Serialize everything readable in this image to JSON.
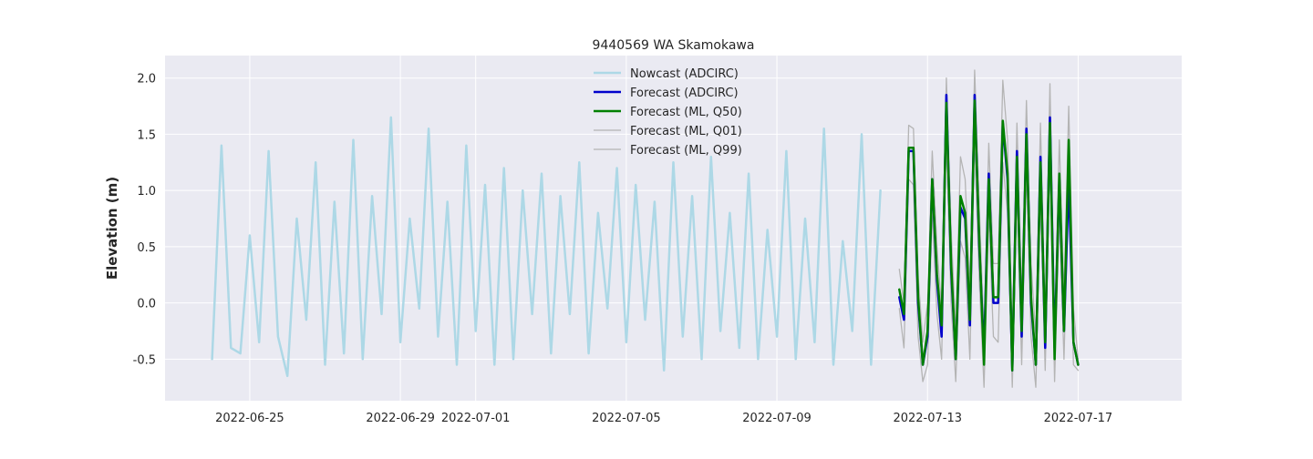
{
  "chart_data": {
    "type": "line",
    "title": "9440569 WA Skamokawa",
    "xlabel": "",
    "ylabel": "Elevation (m)",
    "x_type": "date",
    "xlim": [
      "2022-06-22T18:00",
      "2022-07-19T18:00"
    ],
    "ylim": [
      -0.87,
      2.2
    ],
    "x_ticks": [
      "2022-06-25",
      "2022-06-29",
      "2022-07-01",
      "2022-07-05",
      "2022-07-09",
      "2022-07-13",
      "2022-07-17"
    ],
    "y_ticks": [
      -0.5,
      0.0,
      0.5,
      1.0,
      1.5,
      2.0
    ],
    "grid": true,
    "legend_position": "top-center",
    "series": [
      {
        "name": "Nowcast (ADCIRC)",
        "color": "#add8e6",
        "x_start": "2022-06-24T00:00",
        "step_hours": 6,
        "y": [
          -0.5,
          1.4,
          -0.4,
          -0.45,
          0.6,
          -0.35,
          1.35,
          -0.3,
          -0.65,
          0.75,
          -0.15,
          1.25,
          -0.55,
          0.9,
          -0.45,
          1.45,
          -0.5,
          0.95,
          -0.1,
          1.65,
          -0.35,
          0.75,
          -0.05,
          1.55,
          -0.3,
          0.9,
          -0.55,
          1.4,
          -0.25,
          1.05,
          -0.55,
          1.2,
          -0.5,
          1.0,
          -0.1,
          1.15,
          -0.45,
          0.95,
          -0.1,
          1.25,
          -0.45,
          0.8,
          -0.05,
          1.2,
          -0.35,
          1.05,
          -0.15,
          0.9,
          -0.6,
          1.25,
          -0.3,
          0.95,
          -0.5,
          1.3,
          -0.25,
          0.8,
          -0.4,
          1.15,
          -0.5,
          0.65,
          -0.3,
          1.35,
          -0.5,
          0.75,
          -0.35,
          1.55,
          -0.55,
          0.55,
          -0.25,
          1.5,
          -0.55,
          1.0
        ]
      },
      {
        "name": "Forecast (ADCIRC)",
        "color": "#0000cc",
        "x_start": "2022-07-12T06:00",
        "step_hours": 3,
        "y": [
          0.05,
          -0.15,
          1.35,
          1.35,
          0.0,
          -0.55,
          -0.3,
          1.1,
          0.2,
          -0.3,
          1.85,
          0.3,
          -0.5,
          0.85,
          0.75,
          -0.2,
          1.85,
          0.5,
          -0.45,
          1.15,
          0.0,
          0.0,
          1.6,
          1.1,
          -0.6,
          1.35,
          -0.3,
          1.55,
          0.0,
          -0.55,
          1.3,
          -0.4,
          1.65,
          -0.4,
          1.1,
          -0.25,
          1.1,
          -0.35,
          -0.55
        ]
      },
      {
        "name": "Forecast (ML, Q50)",
        "color": "#008000",
        "x_start": "2022-07-12T06:00",
        "step_hours": 3,
        "y": [
          0.12,
          -0.1,
          1.38,
          1.38,
          0.05,
          -0.55,
          -0.25,
          1.1,
          0.25,
          -0.2,
          1.78,
          0.35,
          -0.5,
          0.95,
          0.8,
          -0.15,
          1.8,
          0.55,
          -0.55,
          1.1,
          0.05,
          0.05,
          1.62,
          1.15,
          -0.6,
          1.3,
          -0.25,
          1.5,
          0.05,
          -0.55,
          1.25,
          -0.35,
          1.6,
          -0.5,
          1.15,
          -0.25,
          1.45,
          -0.35,
          -0.55
        ]
      },
      {
        "name": "Forecast (ML, Q01)",
        "color": "#b4b4b4",
        "x_start": "2022-07-12T06:00",
        "step_hours": 3,
        "y": [
          -0.05,
          -0.4,
          1.1,
          1.05,
          -0.3,
          -0.7,
          -0.55,
          0.8,
          -0.1,
          -0.5,
          1.5,
          0.0,
          -0.7,
          0.55,
          0.4,
          -0.5,
          1.45,
          0.2,
          -0.75,
          0.8,
          -0.3,
          -0.35,
          1.25,
          0.8,
          -0.75,
          1.0,
          -0.55,
          1.2,
          -0.3,
          -0.75,
          0.95,
          -0.6,
          1.3,
          -0.7,
          0.8,
          -0.5,
          1.05,
          -0.55,
          -0.6
        ]
      },
      {
        "name": "Forecast (ML, Q99)",
        "color": "#b4b4b4",
        "x_start": "2022-07-12T06:00",
        "step_hours": 3,
        "y": [
          0.3,
          0.0,
          1.58,
          1.55,
          0.25,
          -0.35,
          0.0,
          1.35,
          0.5,
          -0.05,
          2.0,
          0.65,
          -0.25,
          1.3,
          1.1,
          0.1,
          2.07,
          0.85,
          -0.3,
          1.42,
          0.35,
          0.35,
          1.98,
          1.45,
          -0.3,
          1.6,
          0.05,
          1.8,
          0.35,
          -0.3,
          1.6,
          -0.1,
          1.95,
          -0.2,
          1.45,
          0.05,
          1.75,
          -0.05,
          -0.5
        ]
      }
    ]
  }
}
